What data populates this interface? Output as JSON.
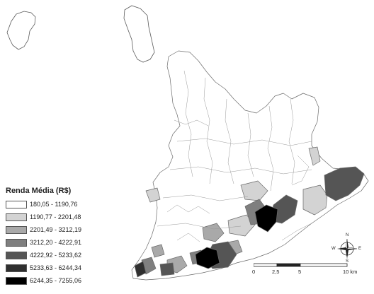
{
  "legend": {
    "title": "Renda Média (R$)",
    "classes": [
      {
        "label": "180,05 - 1190,76",
        "color": "#ffffff"
      },
      {
        "label": "1190,77 - 2201,48",
        "color": "#d3d3d3"
      },
      {
        "label": "2201,49 - 3212,19",
        "color": "#a9a9a9"
      },
      {
        "label": "3212,20 - 4222,91",
        "color": "#7f7f7f"
      },
      {
        "label": "4222,92 - 5233,62",
        "color": "#555555"
      },
      {
        "label": "5233,63 - 6244,34",
        "color": "#2f2f2f"
      },
      {
        "label": "6244,35 - 7255,06",
        "color": "#000000"
      }
    ]
  },
  "compass": {
    "n": "N",
    "s": "S",
    "e": "E",
    "w": "W"
  },
  "scale_bar": {
    "labels": [
      "0",
      "2,5",
      "5",
      "10 km"
    ]
  }
}
